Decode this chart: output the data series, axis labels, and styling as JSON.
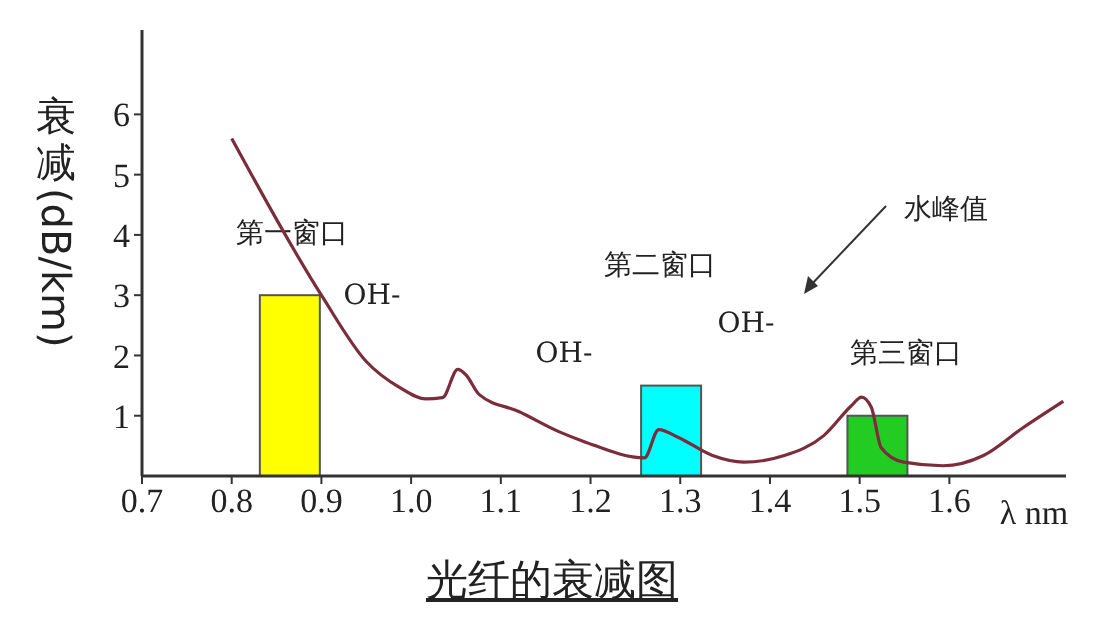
{
  "chart_data": {
    "type": "bar",
    "title": "光纤的衰减图",
    "xlabel": "λ nm",
    "ylabel": "衰减(dB/km)",
    "series": [
      {
        "x": [
          0.865,
          1.29,
          1.52
        ],
        "values": [
          3,
          1.5,
          1
        ],
        "colors": [
          "#ffff00",
          "#00ffff",
          "#22cc22"
        ]
      },
      {
        "type": "line",
        "color": "#7b2d3b",
        "x": [
          0.8,
          0.9,
          0.95,
          0.987,
          1.016,
          1.035,
          1.052,
          1.061,
          1.076,
          1.12,
          1.164,
          1.193,
          1.26,
          1.276,
          1.298,
          1.336,
          1.371,
          1.416,
          1.46,
          1.491,
          1.502,
          1.513,
          1.524,
          1.549,
          1.593,
          1.638,
          1.682,
          1.727
        ],
        "values": [
          5.6,
          3.0,
          1.9,
          1.47,
          1.28,
          1.3,
          1.77,
          1.68,
          1.35,
          1.07,
          0.74,
          0.57,
          0.3,
          0.77,
          0.64,
          0.34,
          0.23,
          0.34,
          0.67,
          1.17,
          1.31,
          1.14,
          0.47,
          0.23,
          0.17,
          0.34,
          0.8,
          1.24
        ]
      }
    ],
    "xlim": [
      0.7,
      1.73
    ],
    "xticks": [
      0.7,
      0.8,
      0.9,
      {
        "value": 1,
        "label": "1.0"
      },
      1.1,
      1.2,
      1.3,
      1.4,
      1.5,
      1.6
    ],
    "ylim": [
      0,
      7.4
    ],
    "yticks": [
      1,
      2,
      3,
      4,
      5,
      6
    ],
    "annotations": [
      "第一窗口",
      "OH-",
      "OH-",
      "第二窗口",
      "OH-",
      "第三窗口",
      "水峰值"
    ],
    "grid": false,
    "legend": false,
    "marker": "none"
  }
}
